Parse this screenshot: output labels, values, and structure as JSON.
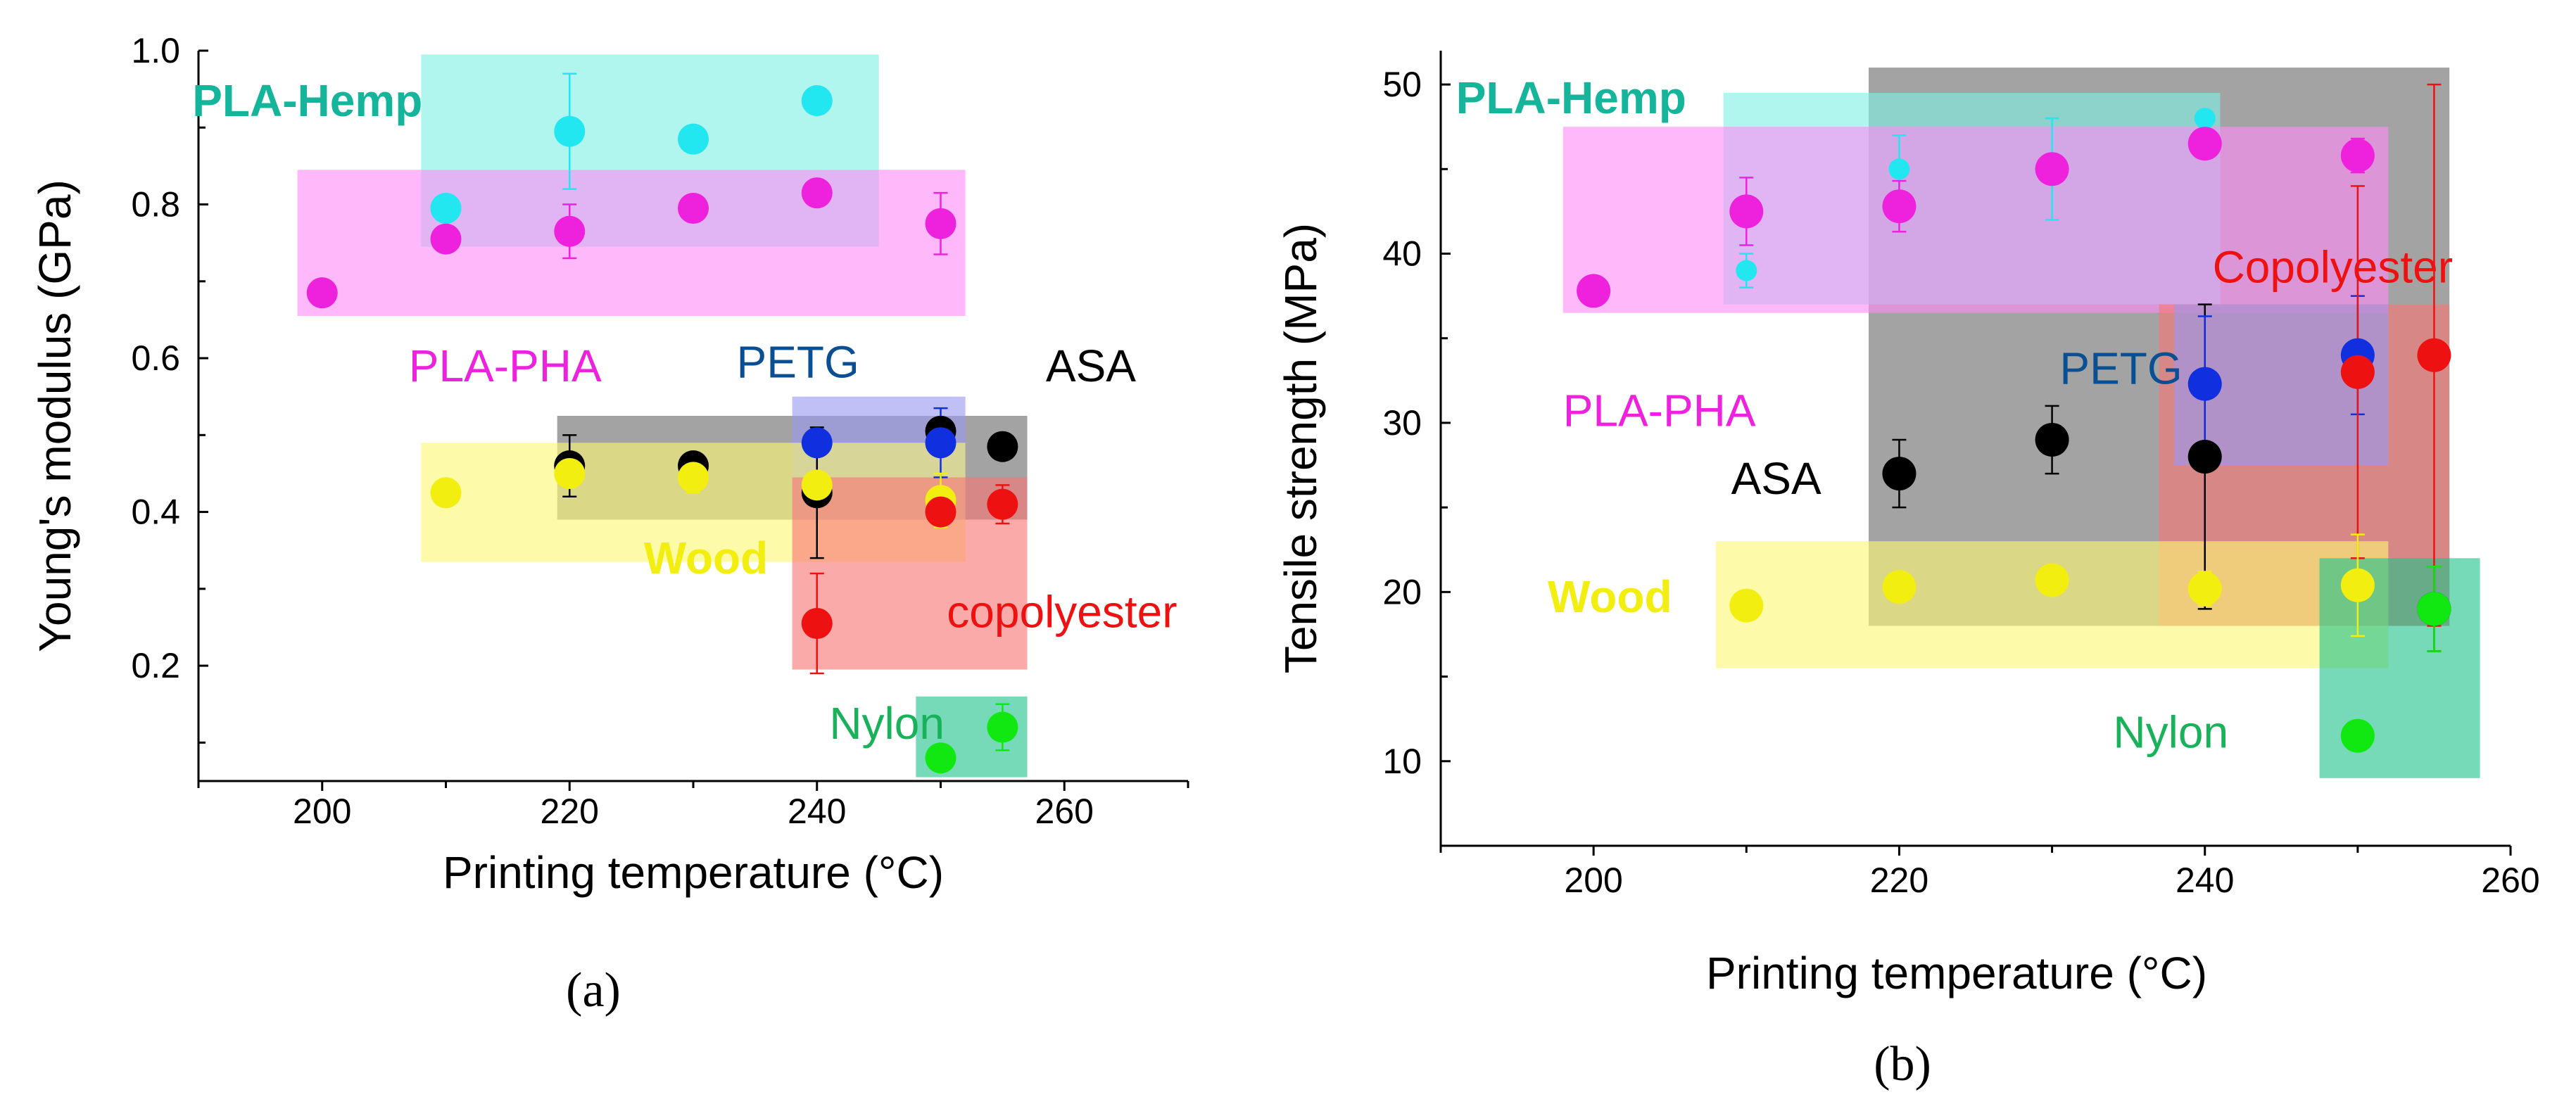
{
  "colors": {
    "pla_hemp_fill": "#7ff1e3",
    "pla_hemp_point": "#22e6f0",
    "pla_hemp_label": "#14b59a",
    "pla_pha_fill": "#ff8cf7",
    "pla_pha_point": "#ee22dd",
    "pla_pha_label": "#ee22dd",
    "asa_fill": "#6b6b6b",
    "asa_point": "#000000",
    "petg_fill": "#9a9af0",
    "petg_point": "#1030e0",
    "petg_label": "#0b4f93",
    "wood_fill": "#fbf774",
    "wood_point": "#f2ee10",
    "wood_label": "#f2ee10",
    "copolyester_fill": "#f87676",
    "copolyester_point": "#ee1111",
    "nylon_fill": "#22c28a",
    "nylon_point": "#11e811",
    "nylon_label": "#19b25a"
  },
  "chart_data": [
    {
      "type": "scatter",
      "panel": "(a)",
      "xlabel": "Printing temperature (°C)",
      "ylabel": "Young's modulus (GPa)",
      "xlim": [
        190,
        270
      ],
      "ylim": [
        0.05,
        1.0
      ],
      "xticks": [
        200,
        220,
        240,
        260
      ],
      "yticks": [
        0.2,
        0.4,
        0.6,
        0.8,
        1.0
      ],
      "ytick_labels": [
        "0.2",
        "0.4",
        "0.6",
        "0.8",
        "1.0"
      ],
      "labels": [
        {
          "text": "PLA-Hemp",
          "color_key": "pla_hemp_label",
          "bold": true,
          "x": 189.5,
          "y": 0.915
        },
        {
          "text": "PLA-PHA",
          "color_key": "pla_pha_label",
          "bold": false,
          "x": 207,
          "y": 0.57
        },
        {
          "text": "PETG",
          "color_key": "petg_label",
          "bold": false,
          "x": 233.5,
          "y": 0.575
        },
        {
          "text": "ASA",
          "color_key": "asa_point",
          "bold": false,
          "x": 258.5,
          "y": 0.57
        },
        {
          "text": "Wood",
          "color_key": "wood_label",
          "bold": true,
          "x": 226,
          "y": 0.32
        },
        {
          "text": "copolyester",
          "color_key": "copolyester_point",
          "bold": false,
          "x": 250.5,
          "y": 0.25
        },
        {
          "text": "Nylon",
          "color_key": "nylon_label",
          "bold": false,
          "x": 241,
          "y": 0.105
        }
      ],
      "regions": [
        {
          "name": "PLA-Hemp",
          "color_key": "pla_hemp_fill",
          "x": [
            208,
            245
          ],
          "y": [
            0.745,
            0.995
          ]
        },
        {
          "name": "PLA-PHA",
          "color_key": "pla_pha_fill",
          "x": [
            198,
            252
          ],
          "y": [
            0.655,
            0.845
          ]
        },
        {
          "name": "ASA",
          "color_key": "asa_fill",
          "x": [
            219,
            257
          ],
          "y": [
            0.39,
            0.525
          ]
        },
        {
          "name": "PETG",
          "color_key": "petg_fill",
          "x": [
            238,
            252
          ],
          "y": [
            0.39,
            0.55
          ]
        },
        {
          "name": "Wood",
          "color_key": "wood_fill",
          "x": [
            208,
            252
          ],
          "y": [
            0.335,
            0.49
          ]
        },
        {
          "name": "Copolyester",
          "color_key": "copolyester_fill",
          "x": [
            238,
            257
          ],
          "y": [
            0.195,
            0.445
          ]
        },
        {
          "name": "Nylon",
          "color_key": "nylon_fill",
          "x": [
            248,
            257
          ],
          "y": [
            0.055,
            0.16
          ]
        }
      ],
      "series": [
        {
          "name": "PLA-Hemp",
          "color_key": "pla_hemp_point",
          "points": [
            {
              "x": 210,
              "y": 0.795
            },
            {
              "x": 220,
              "y": 0.895,
              "err": 0.075
            },
            {
              "x": 230,
              "y": 0.885
            },
            {
              "x": 240,
              "y": 0.935
            }
          ]
        },
        {
          "name": "PLA-PHA",
          "color_key": "pla_pha_point",
          "points": [
            {
              "x": 200,
              "y": 0.685
            },
            {
              "x": 210,
              "y": 0.755
            },
            {
              "x": 220,
              "y": 0.765,
              "err": 0.035
            },
            {
              "x": 230,
              "y": 0.795
            },
            {
              "x": 240,
              "y": 0.815
            },
            {
              "x": 250,
              "y": 0.775,
              "err": 0.04
            }
          ]
        },
        {
          "name": "ASA",
          "color_key": "asa_point",
          "points": [
            {
              "x": 220,
              "y": 0.46,
              "err": 0.04
            },
            {
              "x": 230,
              "y": 0.46
            },
            {
              "x": 240,
              "y": 0.425,
              "err": 0.085
            },
            {
              "x": 250,
              "y": 0.505
            },
            {
              "x": 255,
              "y": 0.485
            }
          ]
        },
        {
          "name": "PETG",
          "color_key": "petg_point",
          "points": [
            {
              "x": 240,
              "y": 0.49
            },
            {
              "x": 250,
              "y": 0.49,
              "err": 0.045
            }
          ]
        },
        {
          "name": "Wood",
          "color_key": "wood_point",
          "points": [
            {
              "x": 210,
              "y": 0.425
            },
            {
              "x": 220,
              "y": 0.45
            },
            {
              "x": 230,
              "y": 0.445,
              "err": 0.02
            },
            {
              "x": 240,
              "y": 0.435
            },
            {
              "x": 250,
              "y": 0.415,
              "err": 0.035
            }
          ]
        },
        {
          "name": "Copolyester",
          "color_key": "copolyester_point",
          "points": [
            {
              "x": 240,
              "y": 0.255,
              "err": 0.065
            },
            {
              "x": 250,
              "y": 0.4
            },
            {
              "x": 255,
              "y": 0.41,
              "err": 0.025
            }
          ]
        },
        {
          "name": "Nylon",
          "color_key": "nylon_point",
          "points": [
            {
              "x": 250,
              "y": 0.08
            },
            {
              "x": 255,
              "y": 0.12,
              "err": 0.03
            }
          ]
        }
      ]
    },
    {
      "type": "scatter",
      "panel": "(b)",
      "xlabel": "Printing temperature (°C)",
      "ylabel": "Tensile strength (MPa)",
      "xlim": [
        190,
        260
      ],
      "ylim": [
        5,
        52
      ],
      "xticks": [
        200,
        220,
        240,
        260
      ],
      "yticks": [
        10,
        20,
        30,
        40,
        50
      ],
      "ytick_labels": [
        "10",
        "20",
        "30",
        "40",
        "50"
      ],
      "labels": [
        {
          "text": "PLA-Hemp",
          "color_key": "pla_hemp_label",
          "bold": true,
          "x": 191,
          "y": 48.3
        },
        {
          "text": "Copolyester",
          "color_key": "copolyester_point",
          "bold": false,
          "x": 240.5,
          "y": 38.3
        },
        {
          "text": "PETG",
          "color_key": "petg_label",
          "bold": false,
          "x": 230.5,
          "y": 32.3
        },
        {
          "text": "PLA-PHA",
          "color_key": "pla_pha_label",
          "bold": false,
          "x": 198,
          "y": 29.8
        },
        {
          "text": "ASA",
          "color_key": "asa_point",
          "bold": false,
          "x": 209,
          "y": 25.8
        },
        {
          "text": "Wood",
          "color_key": "wood_label",
          "bold": true,
          "x": 197,
          "y": 18.8
        },
        {
          "text": "Nylon",
          "color_key": "nylon_label",
          "bold": false,
          "x": 234,
          "y": 10.8
        }
      ],
      "regions": [
        {
          "name": "ASA",
          "color_key": "asa_fill",
          "x": [
            218,
            256
          ],
          "y": [
            18,
            51
          ]
        },
        {
          "name": "PLA-Hemp",
          "color_key": "pla_hemp_fill",
          "x": [
            208.5,
            241
          ],
          "y": [
            37,
            49.5
          ]
        },
        {
          "name": "PLA-PHA",
          "color_key": "pla_pha_fill",
          "x": [
            198,
            252
          ],
          "y": [
            36.5,
            47.5
          ]
        },
        {
          "name": "Copolyester",
          "color_key": "copolyester_fill",
          "x": [
            237,
            256
          ],
          "y": [
            18,
            37
          ]
        },
        {
          "name": "PETG",
          "color_key": "petg_fill",
          "x": [
            238,
            252
          ],
          "y": [
            27.5,
            37
          ]
        },
        {
          "name": "Wood",
          "color_key": "wood_fill",
          "x": [
            208,
            252
          ],
          "y": [
            15.5,
            23
          ]
        },
        {
          "name": "Nylon",
          "color_key": "nylon_fill",
          "x": [
            247.5,
            258
          ],
          "y": [
            9,
            22
          ]
        }
      ],
      "series": [
        {
          "name": "PLA-Hemp",
          "color_key": "pla_hemp_point",
          "size": "small",
          "points": [
            {
              "x": 210,
              "y": 39,
              "err": 1
            },
            {
              "x": 220,
              "y": 45,
              "err": 2
            },
            {
              "x": 230,
              "y": 45,
              "err": 3
            },
            {
              "x": 240,
              "y": 48
            }
          ]
        },
        {
          "name": "PLA-PHA",
          "color_key": "pla_pha_point",
          "points": [
            {
              "x": 200,
              "y": 37.8
            },
            {
              "x": 210,
              "y": 42.5,
              "err": 2
            },
            {
              "x": 220,
              "y": 42.8,
              "err": 1.5
            },
            {
              "x": 230,
              "y": 45
            },
            {
              "x": 240,
              "y": 46.5
            },
            {
              "x": 250,
              "y": 45.8,
              "err": 1
            }
          ]
        },
        {
          "name": "ASA",
          "color_key": "asa_point",
          "points": [
            {
              "x": 220,
              "y": 27,
              "err": 2
            },
            {
              "x": 230,
              "y": 29,
              "err": 2
            },
            {
              "x": 240,
              "y": 28,
              "err": 9
            },
            {
              "x": 255,
              "y": 19,
              "err": 2.5
            }
          ]
        },
        {
          "name": "PETG",
          "color_key": "petg_point",
          "points": [
            {
              "x": 240,
              "y": 32.3,
              "err": 4
            },
            {
              "x": 250,
              "y": 34,
              "err": 3.5
            }
          ]
        },
        {
          "name": "Copolyester",
          "color_key": "copolyester_point",
          "points": [
            {
              "x": 250,
              "y": 33,
              "err": 11
            },
            {
              "x": 255,
              "y": 34,
              "err": 16
            }
          ]
        },
        {
          "name": "Wood",
          "color_key": "wood_point",
          "points": [
            {
              "x": 210,
              "y": 19.2
            },
            {
              "x": 220,
              "y": 20.3
            },
            {
              "x": 230,
              "y": 20.7
            },
            {
              "x": 240,
              "y": 20.2,
              "err": 1
            },
            {
              "x": 250,
              "y": 20.4,
              "err": 3
            }
          ]
        },
        {
          "name": "Nylon",
          "color_key": "nylon_point",
          "points": [
            {
              "x": 250,
              "y": 11.5
            },
            {
              "x": 255,
              "y": 19,
              "err": 2.5
            }
          ]
        }
      ]
    }
  ]
}
